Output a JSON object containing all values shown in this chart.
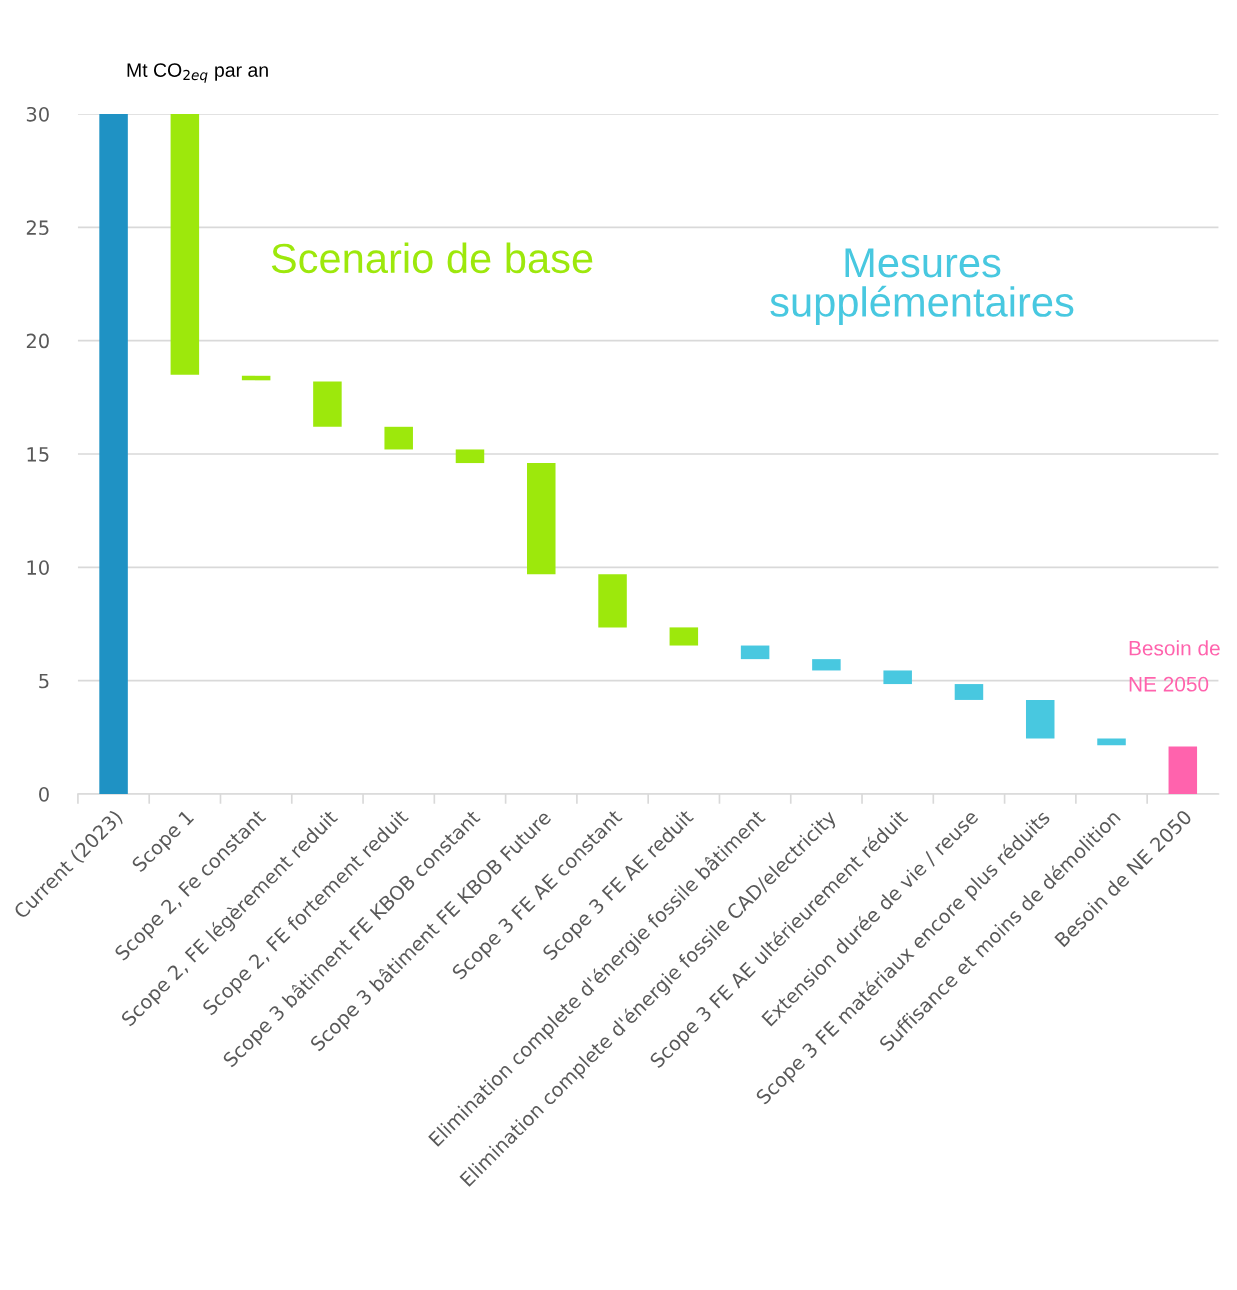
{
  "chart_data": {
    "type": "bar",
    "ylabel": "Mt CO$_{2eq}$ par an",
    "categories": [
      "Current (2023)",
      "Scope 1",
      "Scope 2, Fe constant",
      "Scope 2, FE légèrement reduit",
      "Scope 2, FE fortement reduit",
      "Scope 3 bâtiment FE KBOB constant",
      "Scope 3 bâtiment FE KBOB Future",
      "Scope 3 FE AE constant",
      "Scope 3 FE AE reduit",
      "Elimination complete d'énergie fossile bâtiment",
      "Elimination complete d'énergie fossile CAD/electricity",
      "Scope 3 FE AE ultérieurement réduit",
      "Extension durée de vie / reuse",
      "Scope 3 FE matériaux encore plus réduits",
      "Suffisance et moins de démolition",
      "Besoin de NE 2050"
    ],
    "values": [
      30,
      11.5,
      0.2,
      2.0,
      1.0,
      0.6,
      4.9,
      2.35,
      0.8,
      0.6,
      0.5,
      0.6,
      0.7,
      1.7,
      0.3,
      2.1
    ],
    "base": [
      0,
      18.5,
      18.25,
      16.2,
      15.2,
      14.6,
      9.7,
      7.35,
      6.55,
      5.95,
      5.45,
      4.85,
      4.15,
      2.45,
      2.15,
      0
    ],
    "colors": [
      "#1f92c4",
      "#9de80c",
      "#9de80c",
      "#9de80c",
      "#9de80c",
      "#9de80c",
      "#9de80c",
      "#9de80c",
      "#9de80c",
      "#48c8e0",
      "#48c8e0",
      "#48c8e0",
      "#48c8e0",
      "#48c8e0",
      "#48c8e0",
      "#ff63ad"
    ],
    "annotations": [
      "Scenario de base",
      "Mesures supplémentaires",
      "Besoin de NE 2050"
    ],
    "ylim": [
      0,
      30
    ],
    "yticks": [
      0,
      5,
      10,
      15,
      20,
      25,
      30
    ],
    "grid": "y",
    "legend": false
  }
}
